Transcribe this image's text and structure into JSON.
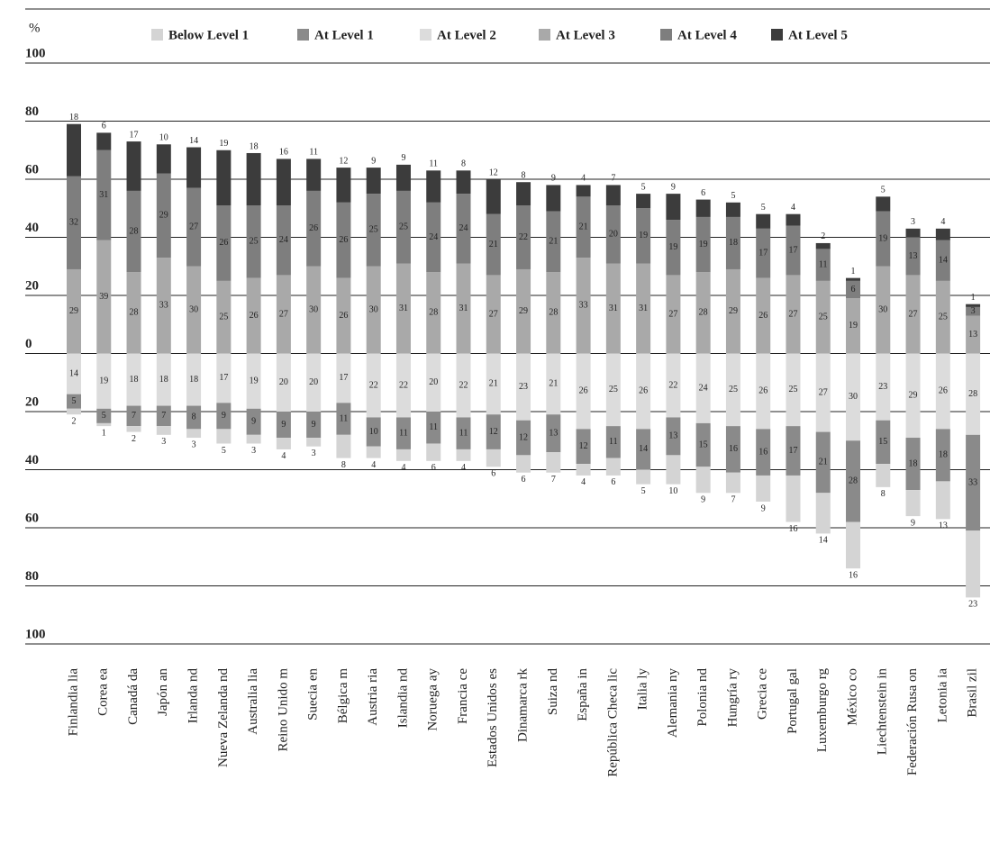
{
  "chart_data": {
    "type": "diverging_stacked_bar",
    "y_label": "%",
    "categories": [
      "Finlandia lia",
      "Corea ea",
      "Canadá da",
      "Japón an",
      "Irlanda nd",
      "Nueva Zelanda nd",
      "Australia lia",
      "Reino Unido m",
      "Suecia en",
      "Bélgica m",
      "Austria ria",
      "Islandia nd",
      "Noruega ay",
      "Francia ce",
      "Estados Unidos es",
      "Dinamarca rk",
      "Suiza nd",
      "España in",
      "República Checa lic",
      "Italia ly",
      "Alemania ny",
      "Polonia nd",
      "Hungría ry",
      "Grecia ce",
      "Portugal gal",
      "Luxemburgo rg",
      "México co",
      "Liechtenstein in",
      "Federación Rusa on",
      "Letonia ia",
      "Brasil zil"
    ],
    "series": [
      {
        "name": "Below Level 1",
        "color": "#d4d4d4",
        "values": [
          2,
          1,
          2,
          3,
          3,
          5,
          3,
          4,
          3,
          8,
          4,
          4,
          6,
          4,
          6,
          6,
          7,
          4,
          6,
          5,
          10,
          9,
          7,
          9,
          16,
          14,
          16,
          8,
          9,
          13,
          23
        ]
      },
      {
        "name": "At Level 1",
        "color": "#8a8a8a",
        "values": [
          5,
          5,
          7,
          7,
          8,
          9,
          9,
          9,
          9,
          11,
          10,
          11,
          11,
          11,
          12,
          12,
          13,
          12,
          11,
          14,
          13,
          15,
          16,
          16,
          17,
          21,
          28,
          15,
          18,
          18,
          33
        ]
      },
      {
        "name": "At Level 2",
        "color": "#dcdcdc",
        "values": [
          14,
          19,
          18,
          18,
          18,
          17,
          19,
          20,
          20,
          17,
          22,
          22,
          20,
          22,
          21,
          23,
          21,
          26,
          25,
          26,
          22,
          24,
          25,
          26,
          25,
          27,
          30,
          23,
          29,
          26,
          28
        ]
      },
      {
        "name": "At Level 3",
        "color": "#a9a9a9",
        "values": [
          29,
          39,
          28,
          33,
          30,
          25,
          26,
          27,
          30,
          26,
          30,
          31,
          28,
          31,
          27,
          29,
          28,
          33,
          31,
          31,
          27,
          28,
          29,
          26,
          27,
          25,
          19,
          30,
          27,
          25,
          13
        ]
      },
      {
        "name": "At Level 4",
        "color": "#7e7e7e",
        "values": [
          32,
          31,
          28,
          29,
          27,
          26,
          25,
          24,
          26,
          26,
          25,
          25,
          24,
          24,
          21,
          22,
          21,
          21,
          20,
          19,
          19,
          19,
          18,
          17,
          17,
          11,
          6,
          19,
          13,
          14,
          3
        ]
      },
      {
        "name": "At Level 5",
        "color": "#3c3c3c",
        "values": [
          18,
          6,
          17,
          10,
          14,
          19,
          18,
          16,
          11,
          12,
          9,
          9,
          11,
          8,
          12,
          8,
          9,
          4,
          7,
          5,
          9,
          6,
          5,
          5,
          4,
          2,
          1,
          5,
          3,
          4,
          1
        ]
      }
    ],
    "ylim": [
      -100,
      100
    ],
    "yticks": [
      100,
      80,
      60,
      40,
      20,
      0,
      {
        "value": -20,
        "label": "20"
      },
      {
        "value": -40,
        "label": "40"
      },
      {
        "value": -60,
        "label": "60"
      },
      {
        "value": -80,
        "label": "80"
      },
      {
        "value": -100,
        "label": "100"
      }
    ],
    "grid": true
  }
}
